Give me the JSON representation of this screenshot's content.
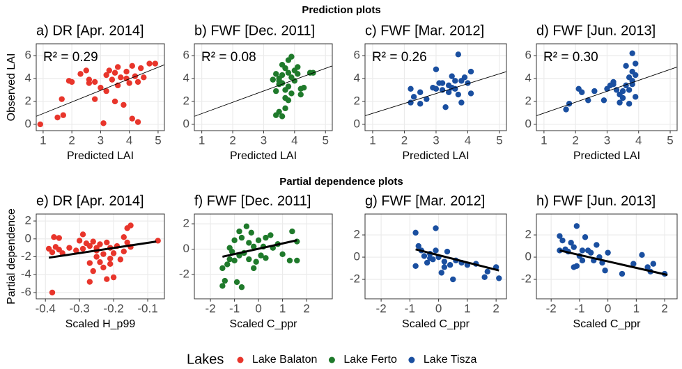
{
  "headings": [
    "Prediction plots",
    "Partial dependence plots"
  ],
  "legend_title": "Lakes",
  "chart_data": [
    {
      "type": "scatter",
      "title": "a) DR [Apr. 2014]",
      "annotation": "R² = 0.29",
      "xlabel": "Predicted LAI",
      "ylabel": "Observed LAI",
      "xlim": [
        0.76,
        5.22
      ],
      "ylim": [
        -0.55,
        7.03
      ],
      "xticks": [
        1,
        2,
        3,
        4,
        5
      ],
      "yticks": [
        0,
        2,
        4,
        6
      ],
      "series": [
        {
          "name": "Lake Balaton",
          "color": "#e8352b",
          "x": [
            0.9,
            1.5,
            1.7,
            1.65,
            1.9,
            2,
            2.3,
            2.5,
            2.6,
            2.8,
            3,
            3.1,
            3.2,
            3.2,
            3.4,
            3.5,
            3.6,
            3.7,
            3.8,
            3.9,
            4,
            4.1,
            4.2,
            4.3,
            4.4,
            4.5,
            4.7,
            4.9,
            3.3,
            3.6,
            4.1,
            2.8,
            3.5,
            3.9,
            4.3,
            2.6
          ],
          "values": [
            0,
            0.6,
            0.8,
            2.2,
            3.8,
            3.7,
            4.4,
            4.7,
            3.6,
            3.7,
            3.2,
            0.1,
            2.9,
            4.3,
            3.9,
            4.5,
            3.4,
            4.1,
            1.7,
            4.6,
            3.6,
            0.5,
            4.2,
            0.2,
            4.9,
            4.1,
            5.3,
            5.3,
            4.7,
            5.0,
            5.1,
            2.2,
            2.0,
            4.0,
            3.7,
            3.9
          ]
        }
      ],
      "trend": {
        "x": [
          0.76,
          5.22
        ],
        "y": [
          0.7,
          5.2
        ]
      }
    },
    {
      "type": "scatter",
      "title": "b) FWF [Dec. 2011]",
      "annotation": "R² = 0.08",
      "xlabel": "Predicted LAI",
      "xlim": [
        0.76,
        5.22
      ],
      "ylim": [
        -0.55,
        7.03
      ],
      "xticks": [
        1,
        2,
        3,
        4,
        5
      ],
      "yticks": [
        0,
        2,
        4,
        6
      ],
      "series": [
        {
          "name": "Lake Ferto",
          "color": "#1f7a2b",
          "x": [
            3.4,
            3.5,
            3.6,
            3.7,
            3.8,
            3.4,
            3.5,
            3.6,
            3.7,
            3.8,
            3.9,
            3.6,
            3.5,
            3.8,
            3.9,
            4.0,
            4.1,
            4.2,
            4.3,
            4.5,
            4.6,
            3.3,
            3.4,
            3.7,
            3.9,
            4.0,
            3.6,
            3.8,
            4.2,
            3.7,
            4.1,
            3.5
          ],
          "values": [
            0.8,
            1.1,
            0.7,
            2.3,
            2.1,
            2.9,
            3.5,
            4.3,
            4.9,
            5.6,
            5.9,
            5.2,
            3.8,
            3.3,
            4.1,
            4.7,
            4.4,
            3.1,
            3.2,
            4.5,
            4.5,
            3.9,
            4.4,
            3.0,
            2.7,
            3.8,
            3.6,
            4.5,
            2.6,
            1.4,
            5.0,
            4.0
          ]
        }
      ],
      "trend": {
        "x": [
          0.76,
          5.22
        ],
        "y": [
          0.7,
          5.1
        ]
      }
    },
    {
      "type": "scatter",
      "title": "c) FWF [Mar. 2012]",
      "annotation": "R² = 0.26",
      "xlabel": "Predicted LAI",
      "xlim": [
        0.76,
        5.22
      ],
      "ylim": [
        -0.55,
        7.03
      ],
      "xticks": [
        1,
        2,
        3,
        4,
        5
      ],
      "yticks": [
        0,
        2,
        4,
        6
      ],
      "series": [
        {
          "name": "Lake Tisza",
          "color": "#1a4fa0",
          "x": [
            2.2,
            2.3,
            2.5,
            2.5,
            2.7,
            2.9,
            3.0,
            3.0,
            3.1,
            3.2,
            3.3,
            3.4,
            3.5,
            3.5,
            3.6,
            3.7,
            3.7,
            3.8,
            3.9,
            4.0,
            4.1,
            4.1,
            3.4,
            3.6,
            3.2,
            3.8,
            2.2
          ],
          "values": [
            1.9,
            2.4,
            2.8,
            1.8,
            2.2,
            3.2,
            3.1,
            4.8,
            3.6,
            3.0,
            1.5,
            3.4,
            3.2,
            4.2,
            3.8,
            2.6,
            6.1,
            3.8,
            4.1,
            3.6,
            4.6,
            2.7,
            2.8,
            3.1,
            3.6,
            1.9,
            3.1
          ]
        }
      ],
      "trend": {
        "x": [
          0.76,
          5.22
        ],
        "y": [
          0.75,
          4.6
        ]
      }
    },
    {
      "type": "scatter",
      "title": "d) FWF [Jun. 2013]",
      "annotation": "R² = 0.30",
      "xlabel": "Predicted LAI",
      "xlim": [
        0.76,
        5.22
      ],
      "ylim": [
        -0.55,
        7.03
      ],
      "xticks": [
        1,
        2,
        3,
        4,
        5
      ],
      "yticks": [
        0,
        2,
        4,
        6
      ],
      "series": [
        {
          "name": "Lake Tisza",
          "color": "#1a4fa0",
          "x": [
            1.7,
            1.8,
            2.1,
            2.2,
            2.4,
            2.6,
            2.9,
            3.0,
            3.1,
            3.2,
            3.3,
            3.4,
            3.4,
            3.5,
            3.6,
            3.7,
            3.7,
            3.8,
            3.8,
            3.9,
            3.9,
            3.8,
            3.6,
            3.9,
            3.7,
            3.2,
            3.5,
            3.8
          ],
          "values": [
            1.3,
            1.8,
            3.1,
            2.8,
            2.1,
            2.9,
            2.1,
            3.1,
            3.4,
            3.7,
            3.0,
            2.6,
            1.9,
            2.3,
            3.4,
            4.1,
            3.0,
            4.6,
            6.2,
            4.3,
            2.4,
            3.8,
            5.1,
            5.3,
            1.8,
            3.5,
            2.9,
            3.5
          ]
        }
      ],
      "trend": {
        "x": [
          0.76,
          5.22
        ],
        "y": [
          0.75,
          5.0
        ]
      }
    },
    {
      "type": "scatter",
      "title": "e) DR [Apr. 2014]",
      "xlabel": "Scaled H_p99",
      "ylabel": "Partial dependence",
      "xlim": [
        -0.427,
        -0.051
      ],
      "ylim": [
        -6.7,
        2.78
      ],
      "xticks": [
        -0.4,
        -0.3,
        -0.2,
        -0.1
      ],
      "yticks": [
        -6,
        -4,
        -2,
        0,
        2
      ],
      "series": [
        {
          "name": "Lake Balaton",
          "color": "#e8352b",
          "x": [
            -0.39,
            -0.38,
            -0.38,
            -0.375,
            -0.37,
            -0.36,
            -0.36,
            -0.35,
            -0.33,
            -0.31,
            -0.3,
            -0.29,
            -0.29,
            -0.28,
            -0.27,
            -0.27,
            -0.26,
            -0.26,
            -0.25,
            -0.25,
            -0.24,
            -0.24,
            -0.23,
            -0.23,
            -0.22,
            -0.22,
            -0.21,
            -0.21,
            -0.2,
            -0.2,
            -0.19,
            -0.18,
            -0.17,
            -0.17,
            -0.16,
            -0.16,
            -0.15,
            -0.15,
            -0.27,
            -0.07,
            -0.21,
            -0.25
          ],
          "values": [
            -1.1,
            -1.5,
            -6.0,
            0.2,
            -0.9,
            0.1,
            -1.2,
            -1.6,
            -1.0,
            -1.3,
            -0.2,
            -1.1,
            0.5,
            -0.5,
            -0.8,
            -2.7,
            -0.3,
            -3.6,
            -1.3,
            -2.0,
            -0.6,
            -2.6,
            -1.7,
            -3.2,
            -4.5,
            -0.4,
            -2.2,
            -1.0,
            -1.6,
            -4.3,
            -0.8,
            -2.3,
            -1.4,
            0.2,
            -0.4,
            1.2,
            1.5,
            -0.9,
            -4.8,
            -0.2,
            -2.8,
            -1.0
          ]
        }
      ],
      "trend": {
        "x": [
          -0.39,
          -0.075
        ],
        "y": [
          -2.1,
          -0.3
        ]
      }
    },
    {
      "type": "scatter",
      "title": "f) FWF [Dec. 2011]",
      "xlabel": "Scaled C_ppr",
      "xlim": [
        -2.67,
        3.07
      ],
      "ylim": [
        -3.92,
        2.77
      ],
      "xticks": [
        -2,
        -1,
        0,
        1,
        2
      ],
      "yticks": [
        -2,
        0,
        2
      ],
      "series": [
        {
          "name": "Lake Ferto",
          "color": "#1f7a2b",
          "x": [
            -1.5,
            -1.4,
            -1.5,
            -1.3,
            -1.2,
            -1.1,
            -1.0,
            -1.0,
            -0.9,
            -0.8,
            -0.8,
            -0.7,
            -0.7,
            -0.6,
            -0.5,
            -0.4,
            -0.4,
            -0.3,
            -0.2,
            -0.2,
            -0.1,
            0,
            0.1,
            0.2,
            0.3,
            0.5,
            0.6,
            0.8,
            1.0,
            1.3,
            1.4,
            1.6,
            1.6,
            -1.2,
            0.3
          ],
          "values": [
            -2.9,
            -2.5,
            -1.5,
            -1.2,
            -0.8,
            -0.2,
            0.7,
            -0.9,
            -2.6,
            -0.5,
            1.4,
            -3.0,
            0.9,
            -0.3,
            1.8,
            0.5,
            -0.8,
            1.3,
            -1.5,
            0.2,
            -1.0,
            0.7,
            -0.5,
            0.2,
            -0.7,
            1.1,
            0.1,
            0.4,
            -0.4,
            -0.9,
            1.4,
            0.6,
            -0.9,
            0.1,
            0.9
          ]
        }
      ],
      "trend": {
        "x": [
          -1.5,
          1.6
        ],
        "y": [
          -0.6,
          0.7
        ]
      }
    },
    {
      "type": "scatter",
      "title": "g) FWF [Mar. 2012]",
      "xlabel": "Scaled C_ppr",
      "xlim": [
        -2.56,
        2.36
      ],
      "ylim": [
        -3.75,
        3.88
      ],
      "xticks": [
        -2,
        -1,
        0,
        1,
        2
      ],
      "yticks": [
        -2,
        0,
        2
      ],
      "series": [
        {
          "name": "Lake Tisza",
          "color": "#1a4fa0",
          "x": [
            -0.8,
            -0.8,
            -0.7,
            -0.6,
            -0.5,
            -0.4,
            -0.3,
            -0.2,
            -0.1,
            -0.1,
            0,
            0.1,
            0.2,
            0.3,
            0.4,
            0.5,
            0.6,
            0.8,
            1.0,
            1.3,
            1.6,
            1.7,
            2.0,
            2.1,
            -0.3,
            0.2
          ],
          "values": [
            2.2,
            -0.8,
            1.0,
            0.6,
            0.1,
            -0.5,
            0.3,
            -0.2,
            0.6,
            2.6,
            0.0,
            -1.4,
            -0.4,
            0.5,
            -0.7,
            -2.0,
            -0.3,
            -0.5,
            -0.7,
            -0.6,
            -1.8,
            -1.3,
            -0.9,
            -1.9,
            -0.1,
            -0.9
          ]
        }
      ],
      "trend": {
        "x": [
          -0.8,
          2.1
        ],
        "y": [
          0.7,
          -1.2
        ]
      }
    },
    {
      "type": "scatter",
      "title": "h) FWF [Jun. 2013]",
      "xlabel": "Scaled C_ppr",
      "xlim": [
        -2.52,
        2.44
      ],
      "ylim": [
        -3.75,
        3.88
      ],
      "xticks": [
        -2,
        -1,
        0,
        1,
        2
      ],
      "yticks": [
        -2,
        0,
        2
      ],
      "series": [
        {
          "name": "Lake Tisza",
          "color": "#1a4fa0",
          "x": [
            -1.7,
            -1.7,
            -1.6,
            -1.5,
            -1.4,
            -1.3,
            -1.2,
            -1.1,
            -1.1,
            -1.0,
            -0.9,
            -0.8,
            -0.7,
            -0.6,
            -0.5,
            -0.4,
            -0.3,
            -0.2,
            -0.1,
            0,
            0.5,
            0.9,
            1.2,
            1.4,
            1.5,
            1.6,
            2.0,
            -1.2,
            -0.9
          ],
          "values": [
            1.9,
            0.6,
            1.5,
            0.7,
            0.5,
            1.3,
            0.9,
            2.8,
            -0.8,
            0.1,
            0.6,
            1.8,
            0.6,
            0.4,
            -0.3,
            1.1,
            0.0,
            -0.5,
            -1.2,
            0.4,
            -1.5,
            -0.6,
            0.2,
            -0.9,
            -1.3,
            -0.6,
            -1.5,
            -0.9,
            -0.3
          ]
        }
      ],
      "trend": {
        "x": [
          -1.7,
          2.1
        ],
        "y": [
          0.6,
          -1.6
        ]
      }
    }
  ]
}
